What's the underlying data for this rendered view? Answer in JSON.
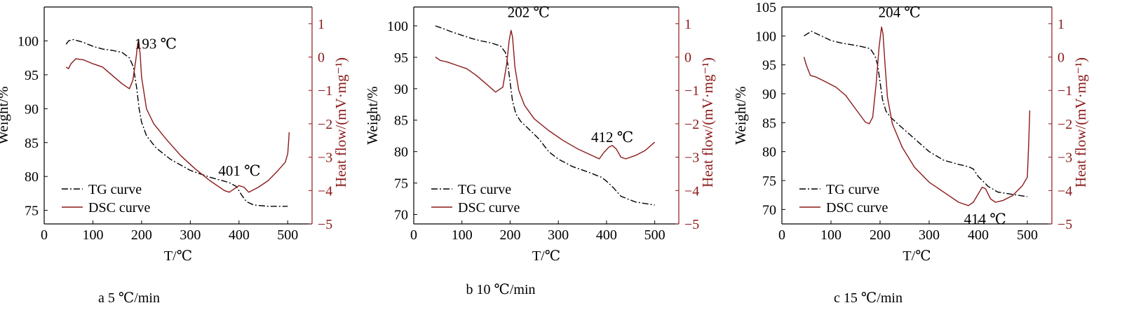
{
  "chart_data": [
    {
      "type": "line",
      "caption": "a  5 ℃/min",
      "xlabel": "T/℃",
      "ylabel_left": "Weight/%",
      "ylabel_right": "Heat flow/(mV·mg⁻¹)",
      "xlim": [
        0,
        550
      ],
      "xticks": [
        0,
        100,
        200,
        300,
        400,
        500
      ],
      "ylim_left": [
        73,
        105
      ],
      "yticks_left": [
        75,
        80,
        85,
        90,
        95,
        100
      ],
      "ylim_right": [
        -5,
        1.5
      ],
      "yticks_right": [
        -5,
        -4,
        -3,
        -2,
        -1,
        0,
        1
      ],
      "legend": [
        "TG curve",
        "DSC curve"
      ],
      "legend_position": "bottom-left",
      "annotations": [
        {
          "text": "193 ℃",
          "x": 193,
          "y": 0.25,
          "axis": "right"
        },
        {
          "text": "401 ℃",
          "x": 401,
          "y": -3.55,
          "axis": "right"
        }
      ],
      "series": [
        {
          "name": "TG curve",
          "axis": "left",
          "color": "#000000",
          "style": "dashdot",
          "x": [
            45,
            50,
            60,
            80,
            100,
            120,
            140,
            160,
            175,
            183,
            190,
            195,
            200,
            210,
            230,
            260,
            300,
            340,
            380,
            395,
            405,
            415,
            430,
            460,
            500
          ],
          "y": [
            99.5,
            100,
            100.2,
            99.8,
            99.2,
            98.8,
            98.6,
            98.3,
            97.5,
            96.2,
            93,
            90,
            88,
            86,
            84.2,
            82.5,
            80.9,
            79.9,
            79.1,
            78.5,
            77.3,
            76.3,
            75.8,
            75.6,
            75.6
          ]
        },
        {
          "name": "DSC curve",
          "axis": "right",
          "color": "#8b1a1a",
          "style": "solid",
          "x": [
            45,
            50,
            55,
            65,
            80,
            100,
            120,
            140,
            160,
            175,
            182,
            188,
            192,
            194,
            197,
            200,
            210,
            225,
            250,
            280,
            310,
            340,
            370,
            380,
            390,
            400,
            410,
            420,
            440,
            460,
            480,
            495,
            500,
            502,
            503
          ],
          "y": [
            -0.3,
            -0.35,
            -0.2,
            -0.05,
            -0.08,
            -0.2,
            -0.3,
            -0.55,
            -0.8,
            -0.95,
            -0.7,
            -0.1,
            0.4,
            0.5,
            0.1,
            -0.6,
            -1.55,
            -2.0,
            -2.45,
            -2.95,
            -3.35,
            -3.7,
            -4.0,
            -4.05,
            -3.95,
            -3.85,
            -3.9,
            -4.05,
            -3.9,
            -3.7,
            -3.4,
            -3.15,
            -2.9,
            -2.5,
            -2.25
          ]
        }
      ]
    },
    {
      "type": "line",
      "caption": "b  10 ℃/min",
      "xlabel": "T/℃",
      "ylabel_left": "Weight/%",
      "ylabel_right": "Heat flow/(mV·mg⁻¹)",
      "xlim": [
        0,
        550
      ],
      "xticks": [
        0,
        100,
        200,
        300,
        400,
        500
      ],
      "ylim_left": [
        68.5,
        103
      ],
      "yticks_left": [
        70,
        75,
        80,
        85,
        90,
        95,
        100
      ],
      "ylim_right": [
        -5,
        1.5
      ],
      "yticks_right": [
        -5,
        -4,
        -3,
        -2,
        -1,
        0,
        1
      ],
      "legend": [
        "TG curve",
        "DSC curve"
      ],
      "legend_position": "bottom-left",
      "annotations": [
        {
          "text": "202 ℃",
          "x": 202,
          "y": 1.2,
          "axis": "right"
        },
        {
          "text": "412 ℃",
          "x": 412,
          "y": -2.55,
          "axis": "right"
        }
      ],
      "series": [
        {
          "name": "TG curve",
          "axis": "left",
          "color": "#000000",
          "style": "dashdot",
          "x": [
            45,
            60,
            80,
            100,
            120,
            140,
            160,
            180,
            190,
            195,
            200,
            205,
            212,
            222,
            240,
            260,
            280,
            300,
            330,
            360,
            380,
            390,
            400,
            415,
            430,
            460,
            500
          ],
          "y": [
            100,
            99.6,
            99,
            98.5,
            98,
            97.6,
            97.3,
            96.8,
            95.8,
            94,
            91,
            88,
            86,
            84.8,
            83.5,
            82,
            80,
            78.8,
            77.6,
            76.8,
            76.2,
            75.9,
            75.3,
            74.2,
            72.9,
            72,
            71.5
          ]
        },
        {
          "name": "DSC curve",
          "axis": "right",
          "color": "#8b1a1a",
          "style": "solid",
          "x": [
            45,
            55,
            70,
            90,
            110,
            130,
            150,
            170,
            185,
            193,
            198,
            202,
            205,
            210,
            218,
            230,
            250,
            280,
            310,
            340,
            370,
            385,
            395,
            405,
            412,
            420,
            430,
            440,
            460,
            480,
            500
          ],
          "y": [
            0,
            -0.1,
            -0.15,
            -0.25,
            -0.35,
            -0.55,
            -0.8,
            -1.05,
            -0.9,
            -0.2,
            0.5,
            0.8,
            0.6,
            -0.3,
            -1.0,
            -1.45,
            -1.85,
            -2.2,
            -2.5,
            -2.75,
            -2.95,
            -3.05,
            -2.85,
            -2.7,
            -2.65,
            -2.75,
            -3.0,
            -3.05,
            -2.95,
            -2.8,
            -2.55
          ]
        }
      ]
    },
    {
      "type": "line",
      "caption": "c  15 ℃/min",
      "xlabel": "T/℃",
      "ylabel_left": "Weight/%",
      "ylabel_right": "Heat flow/(mV·mg⁻¹)",
      "xlim": [
        0,
        550
      ],
      "xticks": [
        0,
        100,
        200,
        300,
        400,
        500
      ],
      "ylim_left": [
        67.5,
        105
      ],
      "yticks_left": [
        70,
        75,
        80,
        85,
        90,
        95,
        100,
        105
      ],
      "ylim_right": [
        -5,
        1.5
      ],
      "yticks_right": [
        -5,
        -4,
        -3,
        -2,
        -1,
        0,
        1
      ],
      "legend": [
        "TG curve",
        "DSC curve"
      ],
      "legend_position": "bottom-left",
      "annotations": [
        {
          "text": "204 ℃",
          "x": 204,
          "y": 1.2,
          "axis": "right"
        },
        {
          "text": "414 ℃",
          "x": 414,
          "y": -5.0,
          "axis": "right"
        }
      ],
      "series": [
        {
          "name": "TG curve",
          "axis": "left",
          "color": "#000000",
          "style": "dashdot",
          "x": [
            45,
            60,
            80,
            100,
            120,
            140,
            160,
            180,
            190,
            195,
            200,
            205,
            212,
            222,
            240,
            260,
            280,
            300,
            330,
            360,
            380,
            390,
            400,
            420,
            440,
            470,
            500
          ],
          "y": [
            100,
            100.8,
            100,
            99.2,
            98.8,
            98.5,
            98.2,
            97.8,
            96.5,
            95,
            92,
            89,
            87,
            85.9,
            84.5,
            83,
            81.5,
            80,
            78.5,
            77.8,
            77.4,
            77,
            75.7,
            74,
            73,
            72.6,
            72.2
          ]
        },
        {
          "name": "DSC curve",
          "axis": "right",
          "color": "#8b1a1a",
          "style": "solid",
          "x": [
            45,
            50,
            58,
            70,
            90,
            110,
            130,
            150,
            170,
            178,
            185,
            192,
            198,
            203,
            206,
            210,
            215,
            225,
            245,
            270,
            300,
            330,
            360,
            380,
            390,
            400,
            408,
            415,
            425,
            435,
            450,
            470,
            490,
            500,
            503,
            505
          ],
          "y": [
            0,
            -0.25,
            -0.55,
            -0.6,
            -0.75,
            -0.9,
            -1.15,
            -1.55,
            -1.95,
            -2.0,
            -1.8,
            -0.8,
            0.3,
            0.9,
            0.7,
            -0.2,
            -1.2,
            -2.0,
            -2.7,
            -3.3,
            -3.75,
            -4.05,
            -4.35,
            -4.45,
            -4.35,
            -4.1,
            -3.9,
            -3.95,
            -4.25,
            -4.35,
            -4.3,
            -4.15,
            -3.85,
            -3.6,
            -2.5,
            -1.6
          ]
        }
      ]
    }
  ]
}
